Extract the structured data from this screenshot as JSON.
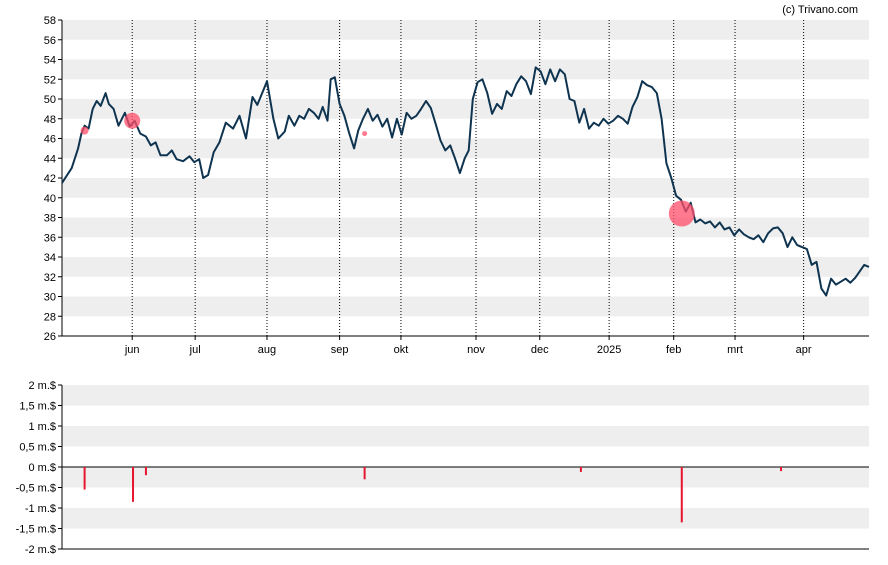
{
  "credit": "(c) Trivano.com",
  "colors": {
    "line": "#0f3450",
    "band": "#eeeeee",
    "marker": "#ff4d6a",
    "volume_bar": "#e8152f",
    "axis": "#000000",
    "vgrid": "#000000"
  },
  "chart_data": [
    {
      "type": "line",
      "name": "price",
      "ylim": [
        26,
        58
      ],
      "yticks": [
        26,
        28,
        30,
        32,
        34,
        36,
        38,
        40,
        42,
        44,
        46,
        48,
        50,
        52,
        54,
        56,
        58
      ],
      "grid": true,
      "x_months": [
        {
          "label": "jun",
          "t": 0.087
        },
        {
          "label": "jul",
          "t": 0.165
        },
        {
          "label": "aug",
          "t": 0.254
        },
        {
          "label": "sep",
          "t": 0.344
        },
        {
          "label": "okt",
          "t": 0.42
        },
        {
          "label": "nov",
          "t": 0.513
        },
        {
          "label": "dec",
          "t": 0.592
        },
        {
          "label": "2025",
          "t": 0.678
        },
        {
          "label": "feb",
          "t": 0.758
        },
        {
          "label": "mrt",
          "t": 0.834
        },
        {
          "label": "apr",
          "t": 0.919
        }
      ],
      "points": [
        [
          0.0,
          41.5
        ],
        [
          0.012,
          43.0
        ],
        [
          0.02,
          45.0
        ],
        [
          0.024,
          46.5
        ],
        [
          0.028,
          47.3
        ],
        [
          0.033,
          47.0
        ],
        [
          0.038,
          49.0
        ],
        [
          0.043,
          49.8
        ],
        [
          0.048,
          49.3
        ],
        [
          0.054,
          50.6
        ],
        [
          0.058,
          49.5
        ],
        [
          0.064,
          49.0
        ],
        [
          0.07,
          47.3
        ],
        [
          0.078,
          48.6
        ],
        [
          0.084,
          47.2
        ],
        [
          0.09,
          47.8
        ],
        [
          0.097,
          46.5
        ],
        [
          0.104,
          46.2
        ],
        [
          0.11,
          45.3
        ],
        [
          0.116,
          45.6
        ],
        [
          0.122,
          44.3
        ],
        [
          0.13,
          44.3
        ],
        [
          0.136,
          44.8
        ],
        [
          0.142,
          43.9
        ],
        [
          0.15,
          43.7
        ],
        [
          0.158,
          44.2
        ],
        [
          0.164,
          43.6
        ],
        [
          0.17,
          43.9
        ],
        [
          0.175,
          42.0
        ],
        [
          0.181,
          42.3
        ],
        [
          0.188,
          44.6
        ],
        [
          0.195,
          45.6
        ],
        [
          0.203,
          47.6
        ],
        [
          0.212,
          47.0
        ],
        [
          0.22,
          48.3
        ],
        [
          0.228,
          46.0
        ],
        [
          0.236,
          50.2
        ],
        [
          0.242,
          49.4
        ],
        [
          0.25,
          51.0
        ],
        [
          0.254,
          51.8
        ],
        [
          0.262,
          48.0
        ],
        [
          0.268,
          46.0
        ],
        [
          0.276,
          46.7
        ],
        [
          0.281,
          48.3
        ],
        [
          0.288,
          47.3
        ],
        [
          0.294,
          48.3
        ],
        [
          0.3,
          48.0
        ],
        [
          0.306,
          49.0
        ],
        [
          0.312,
          48.6
        ],
        [
          0.318,
          48.0
        ],
        [
          0.323,
          49.2
        ],
        [
          0.329,
          47.8
        ],
        [
          0.333,
          52.0
        ],
        [
          0.338,
          52.2
        ],
        [
          0.344,
          49.5
        ],
        [
          0.35,
          48.3
        ],
        [
          0.356,
          46.5
        ],
        [
          0.362,
          45.0
        ],
        [
          0.367,
          46.8
        ],
        [
          0.373,
          48.0
        ],
        [
          0.379,
          49.0
        ],
        [
          0.385,
          47.8
        ],
        [
          0.391,
          48.4
        ],
        [
          0.397,
          47.2
        ],
        [
          0.403,
          48.0
        ],
        [
          0.409,
          46.1
        ],
        [
          0.415,
          48.0
        ],
        [
          0.421,
          46.4
        ],
        [
          0.427,
          48.6
        ],
        [
          0.433,
          48.0
        ],
        [
          0.439,
          48.3
        ],
        [
          0.445,
          49.0
        ],
        [
          0.451,
          49.8
        ],
        [
          0.457,
          49.1
        ],
        [
          0.463,
          47.5
        ],
        [
          0.469,
          45.8
        ],
        [
          0.475,
          44.8
        ],
        [
          0.481,
          45.3
        ],
        [
          0.487,
          44.0
        ],
        [
          0.493,
          42.5
        ],
        [
          0.499,
          44.0
        ],
        [
          0.504,
          44.8
        ],
        [
          0.509,
          50.0
        ],
        [
          0.515,
          51.7
        ],
        [
          0.521,
          52.0
        ],
        [
          0.527,
          50.6
        ],
        [
          0.533,
          48.5
        ],
        [
          0.539,
          49.5
        ],
        [
          0.545,
          49.0
        ],
        [
          0.551,
          50.8
        ],
        [
          0.557,
          50.3
        ],
        [
          0.563,
          51.5
        ],
        [
          0.569,
          52.3
        ],
        [
          0.575,
          51.8
        ],
        [
          0.581,
          50.5
        ],
        [
          0.587,
          53.2
        ],
        [
          0.593,
          52.8
        ],
        [
          0.599,
          51.5
        ],
        [
          0.605,
          53.0
        ],
        [
          0.611,
          51.8
        ],
        [
          0.617,
          53.0
        ],
        [
          0.623,
          52.5
        ],
        [
          0.629,
          50.0
        ],
        [
          0.635,
          49.8
        ],
        [
          0.641,
          47.6
        ],
        [
          0.647,
          49.0
        ],
        [
          0.653,
          47.0
        ],
        [
          0.659,
          47.6
        ],
        [
          0.665,
          47.3
        ],
        [
          0.671,
          48.0
        ],
        [
          0.677,
          47.5
        ],
        [
          0.683,
          47.8
        ],
        [
          0.689,
          48.3
        ],
        [
          0.695,
          48.0
        ],
        [
          0.701,
          47.5
        ],
        [
          0.707,
          49.2
        ],
        [
          0.713,
          50.2
        ],
        [
          0.719,
          51.8
        ],
        [
          0.725,
          51.4
        ],
        [
          0.731,
          51.2
        ],
        [
          0.737,
          50.6
        ],
        [
          0.743,
          48.0
        ],
        [
          0.749,
          43.5
        ],
        [
          0.755,
          42.0
        ],
        [
          0.761,
          40.2
        ],
        [
          0.767,
          39.8
        ],
        [
          0.773,
          38.6
        ],
        [
          0.779,
          39.5
        ],
        [
          0.785,
          37.5
        ],
        [
          0.791,
          37.8
        ],
        [
          0.797,
          37.4
        ],
        [
          0.803,
          37.6
        ],
        [
          0.809,
          37.0
        ],
        [
          0.815,
          37.5
        ],
        [
          0.821,
          36.8
        ],
        [
          0.827,
          37.0
        ],
        [
          0.833,
          36.2
        ],
        [
          0.839,
          36.8
        ],
        [
          0.845,
          36.3
        ],
        [
          0.851,
          36.0
        ],
        [
          0.857,
          35.8
        ],
        [
          0.863,
          36.2
        ],
        [
          0.869,
          35.5
        ],
        [
          0.875,
          36.4
        ],
        [
          0.881,
          36.9
        ],
        [
          0.887,
          37.0
        ],
        [
          0.893,
          36.4
        ],
        [
          0.899,
          35.0
        ],
        [
          0.905,
          36.0
        ],
        [
          0.911,
          35.2
        ],
        [
          0.917,
          35.0
        ],
        [
          0.923,
          34.8
        ],
        [
          0.929,
          33.2
        ],
        [
          0.935,
          33.5
        ],
        [
          0.941,
          30.8
        ],
        [
          0.947,
          30.1
        ],
        [
          0.953,
          31.8
        ],
        [
          0.959,
          31.2
        ],
        [
          0.965,
          31.5
        ],
        [
          0.971,
          31.8
        ],
        [
          0.977,
          31.4
        ],
        [
          0.983,
          31.9
        ],
        [
          0.989,
          32.6
        ],
        [
          0.994,
          33.2
        ],
        [
          1.0,
          33.0
        ]
      ],
      "markers": [
        {
          "t": 0.028,
          "y": 46.8,
          "r": 4
        },
        {
          "t": 0.087,
          "y": 47.8,
          "r": 8
        },
        {
          "t": 0.375,
          "y": 46.5,
          "r": 2.5
        },
        {
          "t": 0.768,
          "y": 38.4,
          "r": 13
        }
      ]
    },
    {
      "type": "bar",
      "name": "volume",
      "ylim": [
        -2,
        2
      ],
      "ytick_values": [
        2,
        1.5,
        1,
        0.5,
        0,
        -0.5,
        -1,
        -1.5,
        -2
      ],
      "ytick_labels": [
        "2 m.$",
        "1,5 m.$",
        "1 m.$",
        "0,5 m.$",
        "0 m.$",
        "-0,5 m.$",
        "-1 m.$",
        "-1,5 m.$",
        "-2 m.$"
      ],
      "grid": true,
      "bars": [
        {
          "t": 0.028,
          "value": -0.55
        },
        {
          "t": 0.088,
          "value": -0.85
        },
        {
          "t": 0.104,
          "value": -0.2
        },
        {
          "t": 0.375,
          "value": -0.3
        },
        {
          "t": 0.643,
          "value": -0.12
        },
        {
          "t": 0.768,
          "value": -1.35
        },
        {
          "t": 0.891,
          "value": -0.1
        }
      ]
    }
  ]
}
